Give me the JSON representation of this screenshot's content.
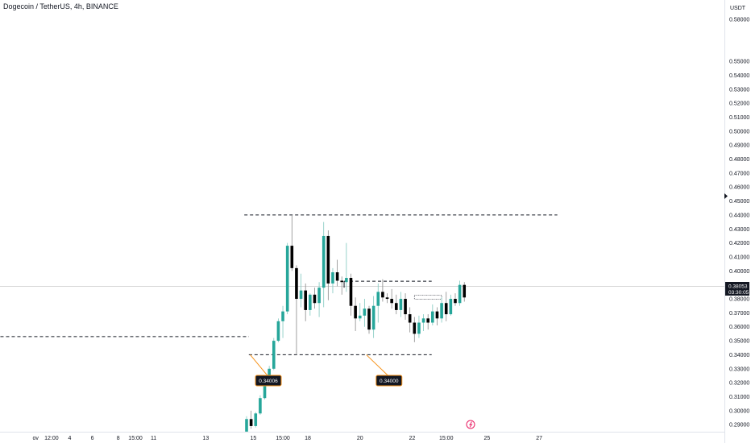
{
  "header": {
    "title": "Dogecoin / TetherUS, 4h, BINANCE",
    "currency": "USDT"
  },
  "price_tag": {
    "price": "0.38053",
    "countdown": "03:30:05"
  },
  "icons": {
    "lightning": "lightning-icon",
    "marker": "triangle-right-icon"
  },
  "colors": {
    "up": "#26a69a",
    "down": "#000000",
    "accent": "#f7931a",
    "crosshair": "#c8c8c8"
  },
  "chart_data": {
    "type": "candlestick",
    "symbol": "Dogecoin / TetherUS",
    "interval": "4h",
    "exchange": "BINANCE",
    "ylim": [
      0.2855,
      0.5875
    ],
    "y_ticks": [
      "0.58000",
      "0.55000",
      "0.54000",
      "0.53000",
      "0.52000",
      "0.51000",
      "0.50000",
      "0.49000",
      "0.48000",
      "0.47000",
      "0.46000",
      "0.45000",
      "0.44000",
      "0.43000",
      "0.42000",
      "0.41000",
      "0.40000",
      "0.39000",
      "0.38000",
      "0.37000",
      "0.36000",
      "0.35000",
      "0.34000",
      "0.33000",
      "0.32000",
      "0.31000",
      "0.30000",
      "0.29000"
    ],
    "x_ticks": [
      {
        "label": "ov",
        "i": -46.5
      },
      {
        "label": "12:00",
        "i": -43
      },
      {
        "label": "4",
        "i": -39
      },
      {
        "label": "6",
        "i": -34
      },
      {
        "label": "8",
        "i": -28.3
      },
      {
        "label": "15:00",
        "i": -24.5
      },
      {
        "label": "11",
        "i": -20.5
      },
      {
        "label": "13",
        "i": -9
      },
      {
        "label": "15",
        "i": 1.5
      },
      {
        "label": "15:00",
        "i": 8
      },
      {
        "label": "18",
        "i": 13.5
      },
      {
        "label": "20",
        "i": 25
      },
      {
        "label": "22",
        "i": 36.5
      },
      {
        "label": "15:00",
        "i": 44
      },
      {
        "label": "25",
        "i": 53
      },
      {
        "label": "27",
        "i": 64.5
      }
    ],
    "candles": [
      [
        0.285,
        0.296,
        0.285,
        0.294
      ],
      [
        0.294,
        0.3,
        0.287,
        0.289
      ],
      [
        0.289,
        0.299,
        0.288,
        0.298
      ],
      [
        0.298,
        0.311,
        0.297,
        0.309
      ],
      [
        0.309,
        0.321,
        0.308,
        0.319
      ],
      [
        0.319,
        0.332,
        0.318,
        0.33
      ],
      [
        0.33,
        0.352,
        0.329,
        0.35
      ],
      [
        0.35,
        0.366,
        0.349,
        0.364
      ],
      [
        0.364,
        0.375,
        0.352,
        0.371
      ],
      [
        0.371,
        0.42,
        0.369,
        0.418
      ],
      [
        0.418,
        0.44,
        0.4,
        0.402
      ],
      [
        0.402,
        0.404,
        0.34,
        0.38
      ],
      [
        0.38,
        0.398,
        0.374,
        0.386
      ],
      [
        0.386,
        0.391,
        0.364,
        0.372
      ],
      [
        0.372,
        0.384,
        0.368,
        0.383
      ],
      [
        0.383,
        0.388,
        0.373,
        0.377
      ],
      [
        0.377,
        0.392,
        0.367,
        0.388
      ],
      [
        0.388,
        0.435,
        0.374,
        0.425
      ],
      [
        0.425,
        0.429,
        0.379,
        0.391
      ],
      [
        0.391,
        0.402,
        0.384,
        0.399
      ],
      [
        0.399,
        0.408,
        0.389,
        0.393
      ],
      [
        0.393,
        0.396,
        0.383,
        0.392
      ],
      [
        0.392,
        0.42,
        0.385,
        0.395
      ],
      [
        0.395,
        0.398,
        0.368,
        0.375
      ],
      [
        0.375,
        0.381,
        0.357,
        0.366
      ],
      [
        0.366,
        0.377,
        0.364,
        0.368
      ],
      [
        0.368,
        0.38,
        0.36,
        0.373
      ],
      [
        0.373,
        0.375,
        0.355,
        0.358
      ],
      [
        0.358,
        0.382,
        0.352,
        0.375
      ],
      [
        0.375,
        0.391,
        0.363,
        0.385
      ],
      [
        0.385,
        0.394,
        0.378,
        0.381
      ],
      [
        0.381,
        0.384,
        0.377,
        0.38
      ],
      [
        0.38,
        0.387,
        0.373,
        0.377
      ],
      [
        0.377,
        0.383,
        0.369,
        0.372
      ],
      [
        0.372,
        0.385,
        0.367,
        0.38
      ],
      [
        0.38,
        0.384,
        0.365,
        0.369
      ],
      [
        0.369,
        0.374,
        0.356,
        0.363
      ],
      [
        0.363,
        0.367,
        0.349,
        0.355
      ],
      [
        0.355,
        0.368,
        0.352,
        0.363
      ],
      [
        0.363,
        0.369,
        0.357,
        0.366
      ],
      [
        0.366,
        0.369,
        0.358,
        0.363
      ],
      [
        0.363,
        0.376,
        0.361,
        0.371
      ],
      [
        0.371,
        0.374,
        0.361,
        0.366
      ],
      [
        0.366,
        0.381,
        0.363,
        0.377
      ],
      [
        0.377,
        0.385,
        0.364,
        0.369
      ],
      [
        0.369,
        0.383,
        0.368,
        0.38
      ],
      [
        0.38,
        0.384,
        0.375,
        0.377
      ],
      [
        0.377,
        0.393,
        0.375,
        0.39
      ],
      [
        0.39,
        0.392,
        0.378,
        0.381
      ]
    ],
    "annotations": {
      "hlines": [
        {
          "y": 0.44,
          "i_start": -0.5,
          "i_end": 68.5
        },
        {
          "y": 0.353,
          "i_start": -58,
          "i_end": 0.5
        },
        {
          "y": 0.34,
          "i_start": 0.5,
          "i_end": 40.8
        },
        {
          "y": 0.3926,
          "i_start": 21.5,
          "i_end": 40.8
        }
      ],
      "range_box": {
        "y_top": 0.3826,
        "y_bottom": 0.3798,
        "i_start": 37,
        "i_end": 43
      },
      "callouts": [
        {
          "text": "0.34006",
          "anchor_i": 0.8,
          "anchor_y": 0.34,
          "label_i": 4.8,
          "label_y": 0.3215
        },
        {
          "text": "0.34000",
          "anchor_i": 26.4,
          "anchor_y": 0.34,
          "label_i": 31.4,
          "label_y": 0.3215
        }
      ]
    }
  }
}
